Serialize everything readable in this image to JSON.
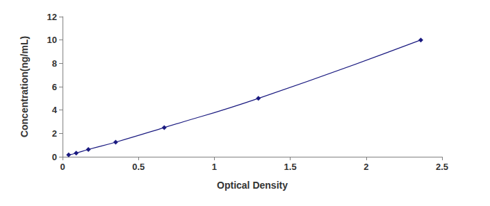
{
  "chart_data": {
    "type": "line",
    "x_label": "Optical Density",
    "y_label": "Concentration(ng/mL)",
    "x": [
      0.04,
      0.09,
      0.17,
      0.35,
      0.67,
      1.29,
      2.36
    ],
    "values": [
      0.156,
      0.312,
      0.625,
      1.25,
      2.5,
      5,
      10
    ],
    "color": "#1a1a80",
    "marker": "diamond",
    "xlim": [
      0,
      2.5
    ],
    "xticks": [
      0,
      0.5,
      1,
      1.5,
      2,
      2.5
    ],
    "ylim": [
      0,
      12
    ],
    "yticks": [
      0,
      2,
      4,
      6,
      8,
      10,
      12
    ],
    "grid": false
  }
}
